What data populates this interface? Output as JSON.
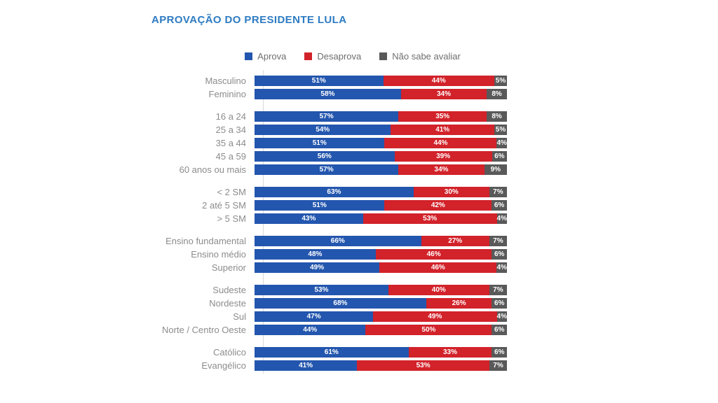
{
  "title": "APROVAÇÃO DO PRESIDENTE LULA",
  "colors": {
    "title": "#2e7bc2",
    "approve_blue": "#2356ae",
    "disapprove_red": "#d2222a",
    "unsure_gray": "#595959",
    "row_label_gray": "#8c8c8c",
    "axis_line": "#d9d9d9",
    "background": "#ffffff"
  },
  "chart_data": {
    "type": "bar",
    "variant": "horizontal-stacked-100",
    "title": "APROVAÇÃO DO PRESIDENTE LULA",
    "xlim": [
      0,
      100
    ],
    "value_suffix": "%",
    "grid": false,
    "legend_position": "top-center",
    "series": [
      {
        "key": "aprova",
        "name": "Aprova",
        "color": "#2356ae"
      },
      {
        "key": "desaprova",
        "name": "Desaprova",
        "color": "#d2222a"
      },
      {
        "key": "nao-sabe-avaliar",
        "name": "Não sabe avaliar",
        "color": "#595959"
      }
    ],
    "groups": [
      {
        "id": "gender",
        "rows": [
          {
            "label": "Masculino",
            "values": [
              51,
              44,
              5
            ]
          },
          {
            "label": "Feminino",
            "values": [
              58,
              34,
              8
            ]
          }
        ]
      },
      {
        "id": "age",
        "rows": [
          {
            "label": "16 a 24",
            "values": [
              57,
              35,
              8
            ]
          },
          {
            "label": "25 a 34",
            "values": [
              54,
              41,
              5
            ]
          },
          {
            "label": "35 a 44",
            "values": [
              51,
              44,
              4
            ]
          },
          {
            "label": "45 a 59",
            "values": [
              56,
              39,
              6
            ]
          },
          {
            "label": "60 anos ou mais",
            "values": [
              57,
              34,
              9
            ]
          }
        ]
      },
      {
        "id": "income",
        "rows": [
          {
            "label": "< 2 SM",
            "values": [
              63,
              30,
              7
            ]
          },
          {
            "label": "2 até 5 SM",
            "values": [
              51,
              42,
              6
            ]
          },
          {
            "label": "> 5 SM",
            "values": [
              43,
              53,
              4
            ]
          }
        ]
      },
      {
        "id": "education",
        "rows": [
          {
            "label": "Ensino fundamental",
            "values": [
              66,
              27,
              7
            ]
          },
          {
            "label": "Ensino médio",
            "values": [
              48,
              46,
              6
            ]
          },
          {
            "label": "Superior",
            "values": [
              49,
              46,
              4
            ]
          }
        ]
      },
      {
        "id": "region",
        "rows": [
          {
            "label": "Sudeste",
            "values": [
              53,
              40,
              7
            ]
          },
          {
            "label": "Nordeste",
            "values": [
              68,
              26,
              6
            ]
          },
          {
            "label": "Sul",
            "values": [
              47,
              49,
              4
            ]
          },
          {
            "label": "Norte / Centro Oeste",
            "values": [
              44,
              50,
              6
            ]
          }
        ]
      },
      {
        "id": "religion",
        "rows": [
          {
            "label": "Católico",
            "values": [
              61,
              33,
              6
            ]
          },
          {
            "label": "Evangélico",
            "values": [
              41,
              53,
              7
            ]
          }
        ]
      }
    ]
  }
}
